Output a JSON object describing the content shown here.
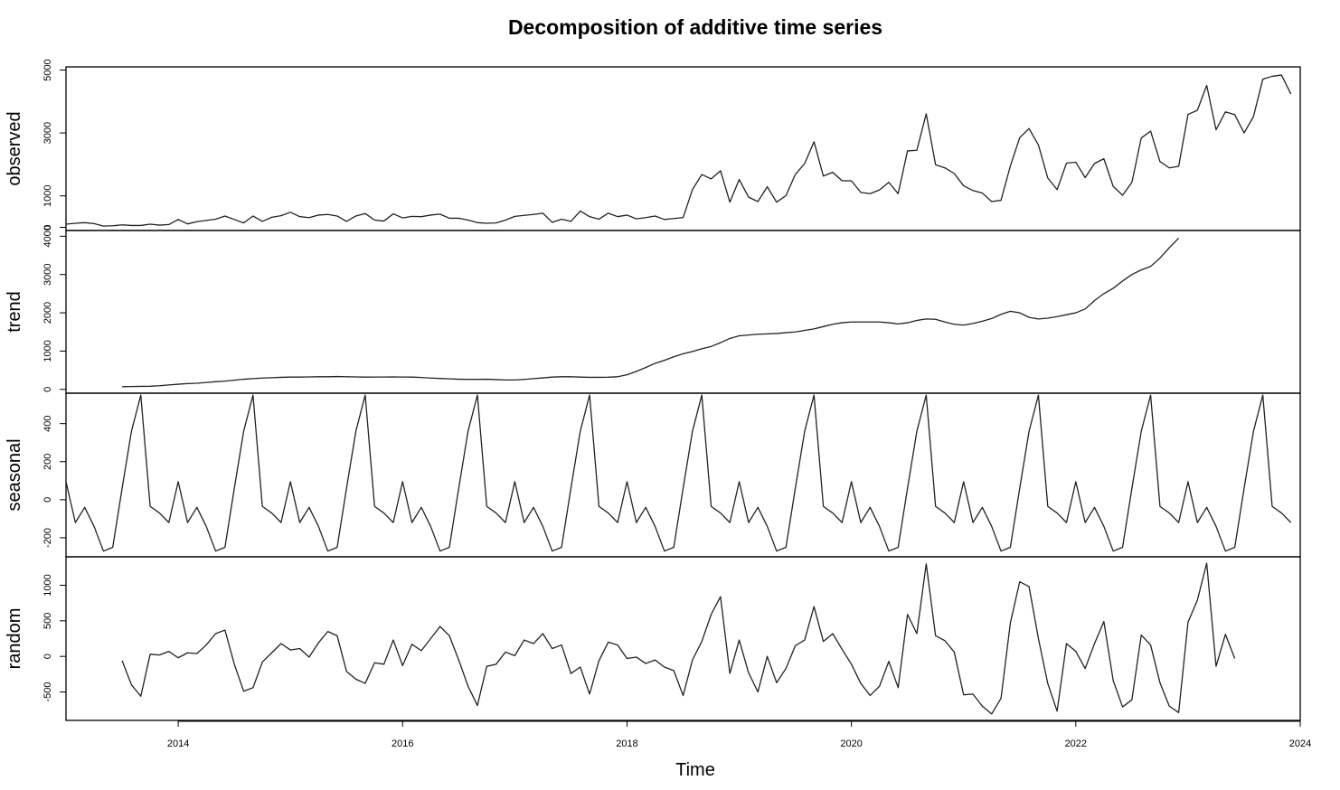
{
  "chart_data": {
    "type": "line",
    "title": "Decomposition of additive time series",
    "xlabel": "Time",
    "x": {
      "start": 2013.0,
      "frequency": 12,
      "range": [
        2013.0,
        2024.0
      ],
      "ticks": [
        2014,
        2016,
        2018,
        2020,
        2022,
        2024
      ],
      "tick_labels": [
        "2014",
        "2016",
        "2018",
        "2020",
        "2022",
        "2024"
      ]
    },
    "panels": [
      {
        "name": "observed",
        "ylim": [
          -100,
          5100
        ],
        "yticks": [
          0,
          1000,
          3000,
          5000
        ],
        "ytick_labels": [
          "0",
          "1000",
          "3000",
          "5000"
        ],
        "start": 2013.0,
        "values": [
          100,
          130,
          150,
          120,
          40,
          50,
          80,
          60,
          60,
          100,
          70,
          90,
          250,
          110,
          180,
          220,
          260,
          360,
          250,
          140,
          360,
          190,
          320,
          370,
          480,
          340,
          310,
          390,
          410,
          360,
          190,
          360,
          440,
          230,
          200,
          430,
          300,
          350,
          340,
          390,
          420,
          290,
          290,
          230,
          150,
          130,
          140,
          230,
          350,
          380,
          410,
          450,
          160,
          260,
          190,
          520,
          340,
          260,
          450,
          340,
          390,
          270,
          310,
          360,
          250,
          280,
          310,
          1200,
          1680,
          1540,
          1800,
          800,
          1520,
          960,
          820,
          1290,
          800,
          1010,
          1680,
          2030,
          2720,
          1630,
          1750,
          1480,
          1480,
          1110,
          1070,
          1190,
          1430,
          1070,
          2430,
          2450,
          3610,
          1990,
          1890,
          1710,
          1320,
          1170,
          1090,
          820,
          860,
          1950,
          2850,
          3140,
          2620,
          1570,
          1200,
          2040,
          2070,
          1580,
          2030,
          2180,
          1300,
          1020,
          1430,
          2840,
          3060,
          2090,
          1890,
          1940,
          3590,
          3720,
          4510,
          3100,
          3670,
          3580,
          3000,
          3520,
          4710,
          4800,
          4840,
          4240
        ]
      },
      {
        "name": "trend",
        "ylim": [
          -100,
          4150
        ],
        "yticks": [
          0,
          1000,
          2000,
          3000,
          4000
        ],
        "ytick_labels": [
          "0",
          "1000",
          "2000",
          "3000",
          "4000"
        ],
        "start": 2013.5,
        "values": [
          70,
          75,
          78,
          82,
          95,
          115,
          135,
          150,
          160,
          180,
          200,
          215,
          240,
          265,
          280,
          295,
          305,
          315,
          320,
          320,
          325,
          330,
          330,
          335,
          330,
          325,
          320,
          322,
          322,
          325,
          322,
          320,
          310,
          295,
          285,
          275,
          265,
          262,
          262,
          265,
          255,
          245,
          245,
          260,
          280,
          300,
          320,
          330,
          330,
          320,
          315,
          315,
          318,
          330,
          380,
          470,
          570,
          680,
          760,
          850,
          930,
          990,
          1060,
          1120,
          1220,
          1330,
          1400,
          1420,
          1440,
          1450,
          1460,
          1480,
          1500,
          1540,
          1580,
          1640,
          1700,
          1740,
          1760,
          1760,
          1760,
          1760,
          1740,
          1710,
          1740,
          1800,
          1840,
          1830,
          1760,
          1700,
          1680,
          1720,
          1780,
          1850,
          1960,
          2040,
          2000,
          1880,
          1840,
          1860,
          1900,
          1950,
          2000,
          2100,
          2320,
          2500,
          2640,
          2830,
          3000,
          3120,
          3210,
          3430,
          3700,
          3950
        ]
      },
      {
        "name": "seasonal",
        "ylim": [
          -300,
          560
        ],
        "yticks": [
          -200,
          0,
          200,
          400
        ],
        "ytick_labels": [
          "-200",
          "0",
          "200",
          "400"
        ],
        "start": 2013.0,
        "values": [
          95,
          -120,
          -40,
          -140,
          -270,
          -250,
          60,
          360,
          550,
          -35,
          -70,
          -120,
          95,
          -120,
          -40,
          -140,
          -270,
          -250,
          60,
          360,
          550,
          -35,
          -70,
          -120,
          95,
          -120,
          -40,
          -140,
          -270,
          -250,
          60,
          360,
          550,
          -35,
          -70,
          -120,
          95,
          -120,
          -40,
          -140,
          -270,
          -250,
          60,
          360,
          550,
          -35,
          -70,
          -120,
          95,
          -120,
          -40,
          -140,
          -270,
          -250,
          60,
          360,
          550,
          -35,
          -70,
          -120,
          95,
          -120,
          -40,
          -140,
          -270,
          -250,
          60,
          360,
          550,
          -35,
          -70,
          -120,
          95,
          -120,
          -40,
          -140,
          -270,
          -250,
          60,
          360,
          550,
          -35,
          -70,
          -120,
          95,
          -120,
          -40,
          -140,
          -270,
          -250,
          60,
          360,
          550,
          -35,
          -70,
          -120,
          95,
          -120,
          -40,
          -140,
          -270,
          -250,
          60,
          360,
          550,
          -35,
          -70,
          -120,
          95,
          -120,
          -40,
          -140,
          -270,
          -250,
          60,
          360,
          550,
          -35,
          -70,
          -120,
          95,
          -120,
          -40,
          -140,
          -270,
          -250,
          60,
          360,
          550,
          -35,
          -70,
          -120
        ]
      },
      {
        "name": "random",
        "ylim": [
          -900,
          1400
        ],
        "yticks": [
          -500,
          0,
          500,
          1000
        ],
        "ytick_labels": [
          "-500",
          "0",
          "500",
          "1000"
        ],
        "start": 2013.5,
        "values": [
          -60,
          -400,
          -560,
          30,
          20,
          70,
          -20,
          50,
          40,
          160,
          320,
          370,
          -110,
          -490,
          -440,
          -80,
          50,
          180,
          90,
          110,
          -10,
          190,
          350,
          290,
          -210,
          -320,
          -380,
          -90,
          -110,
          230,
          -130,
          170,
          80,
          250,
          420,
          290,
          -50,
          -420,
          -690,
          -140,
          -110,
          60,
          10,
          230,
          180,
          320,
          110,
          160,
          -240,
          -150,
          -530,
          -60,
          200,
          160,
          -30,
          -10,
          -100,
          -50,
          -150,
          -200,
          -550,
          -50,
          210,
          590,
          840,
          -240,
          230,
          -230,
          -500,
          0,
          -370,
          -170,
          150,
          230,
          700,
          210,
          320,
          100,
          -110,
          -380,
          -550,
          -420,
          -70,
          -440,
          590,
          320,
          1300,
          290,
          220,
          60,
          -540,
          -530,
          -700,
          -810,
          -590,
          470,
          1050,
          980,
          250,
          -380,
          -770,
          180,
          70,
          -170,
          180,
          490,
          -340,
          -710,
          -610,
          300,
          160,
          -370,
          -700,
          -790,
          480,
          790,
          1310,
          -140,
          310,
          -30
        ]
      }
    ]
  }
}
